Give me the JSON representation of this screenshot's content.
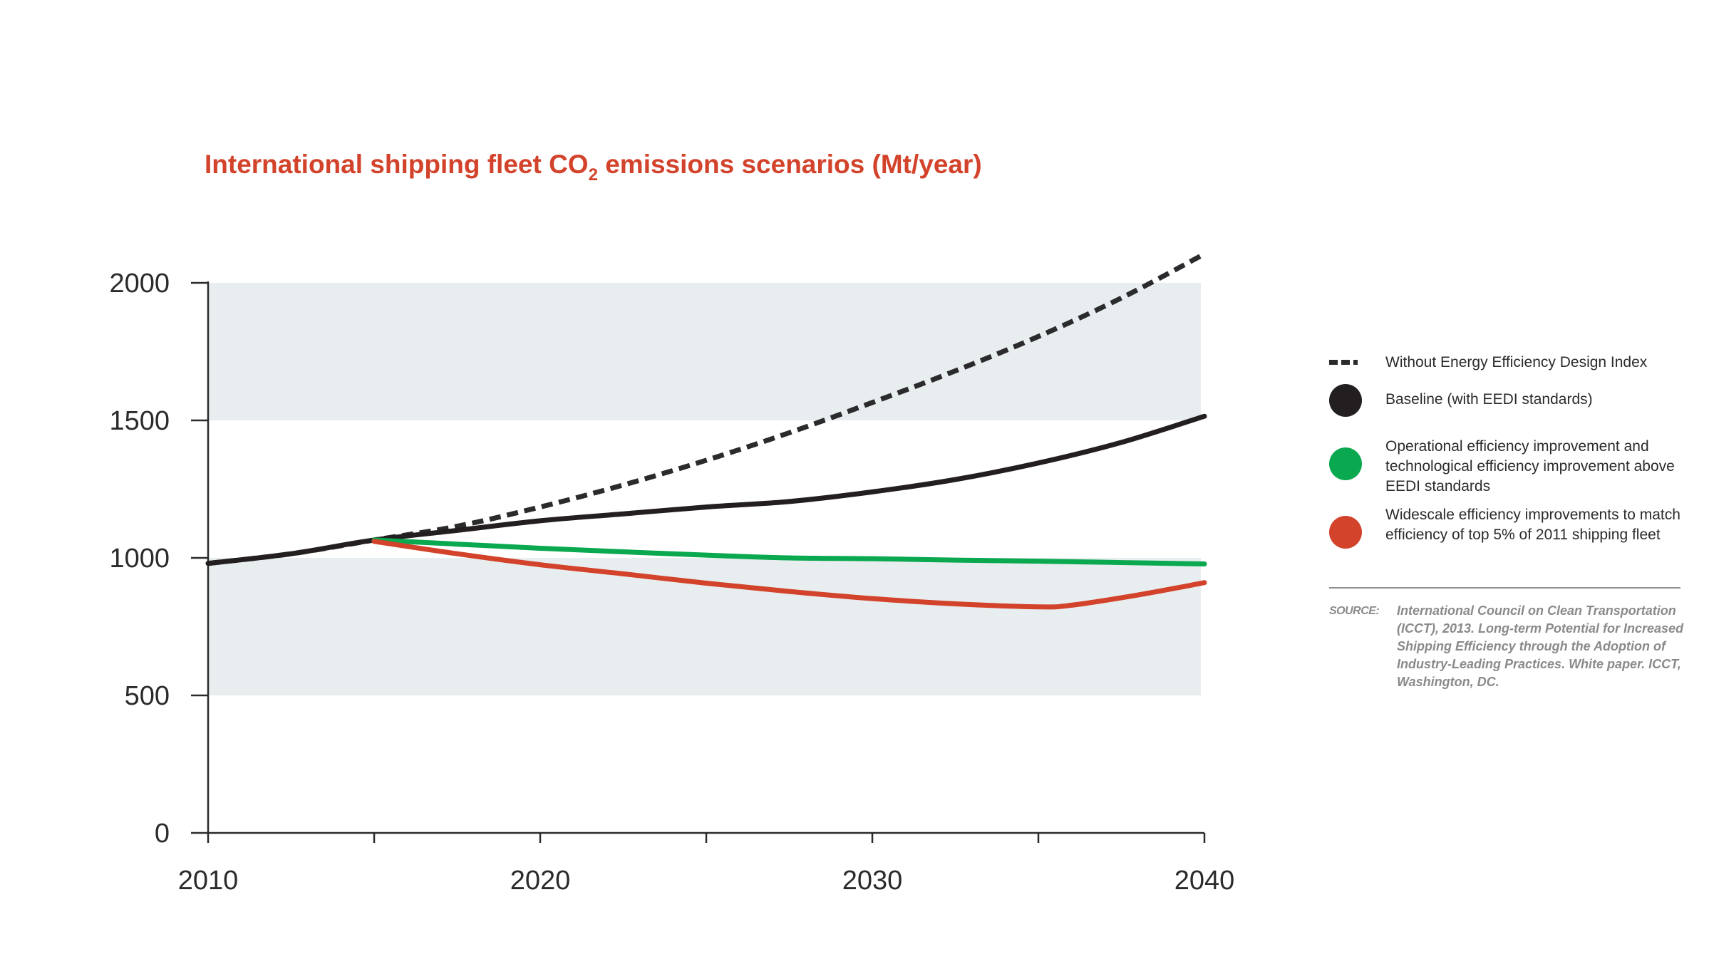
{
  "chart_data": {
    "type": "line",
    "title_main": "International shipping fleet CO",
    "title_sub": "2",
    "title_rest": " emissions scenarios (Mt/year)",
    "x_ticks": [
      "2010",
      "2020",
      "2030",
      "2040"
    ],
    "y_ticks": [
      "0",
      "500",
      "1000",
      "1500",
      "2000"
    ],
    "xlim": [
      2010,
      2040
    ],
    "ylim": [
      0,
      2000
    ],
    "bands": [
      {
        "from": 500,
        "to": 1000,
        "color": "#e8edef"
      },
      {
        "from": 1500,
        "to": 2000,
        "color": "#e8edef"
      }
    ],
    "series": [
      {
        "name": "Without Energy Efficiency Design Index",
        "color": "#2b2a2c",
        "dashed": true,
        "x": [
          2010,
          2012.5,
          2015,
          2017.5,
          2020,
          2022.5,
          2025,
          2027.5,
          2030,
          2032.5,
          2035,
          2037.5,
          2040
        ],
        "y": [
          980,
          1015,
          1065,
          1115,
          1185,
          1265,
          1355,
          1455,
          1565,
          1680,
          1805,
          1945,
          2105
        ]
      },
      {
        "name": "Baseline (with EEDI standards)",
        "color": "#231f20",
        "dashed": false,
        "x": [
          2010,
          2012.5,
          2015,
          2017.5,
          2020,
          2022.5,
          2025,
          2027.5,
          2030,
          2032.5,
          2035,
          2037.5,
          2040
        ],
        "y": [
          980,
          1015,
          1065,
          1100,
          1135,
          1160,
          1185,
          1205,
          1240,
          1285,
          1345,
          1420,
          1515
        ]
      },
      {
        "name": "Operational efficiency improvement and technological efficiency improvement above EEDI standards",
        "color": "#0aa84f",
        "dashed": false,
        "x": [
          2015,
          2017.5,
          2020,
          2022.5,
          2025,
          2027.5,
          2030,
          2032.5,
          2035,
          2037.5,
          2040
        ],
        "y": [
          1065,
          1050,
          1035,
          1022,
          1010,
          1000,
          997,
          992,
          988,
          983,
          978
        ]
      },
      {
        "name": "Widescale efficiency improvements to match efficiency of top 5% of 2011 shipping fleet",
        "color": "#d3432b",
        "dashed": false,
        "x": [
          2015,
          2017.5,
          2020,
          2022.5,
          2025,
          2027.5,
          2030,
          2032.5,
          2035,
          2036,
          2038,
          2040
        ],
        "y": [
          1060,
          1015,
          975,
          942,
          908,
          878,
          852,
          833,
          822,
          828,
          865,
          910
        ]
      }
    ]
  },
  "legend": [
    {
      "label": "Without Energy Efficiency Design Index",
      "swatch": "dash",
      "color": "#2b2a2c"
    },
    {
      "label": "Baseline (with EEDI standards)",
      "swatch": "dot",
      "color": "#231f20"
    },
    {
      "label": "Operational efficiency improvement and technological efficiency improvement above EEDI standards",
      "swatch": "dot",
      "color": "#0aa84f"
    },
    {
      "label": "Widescale efficiency improvements to match efficiency of top 5% of 2011 shipping fleet",
      "swatch": "dot",
      "color": "#d3432b"
    }
  ],
  "source": {
    "label": "SOURCE:",
    "text": "International Council on Clean Transportation (ICCT), 2013. Long-term Potential for Increased Shipping Efficiency through the Adoption of Industry-Leading Practices. White paper. ICCT, Washington, DC."
  }
}
